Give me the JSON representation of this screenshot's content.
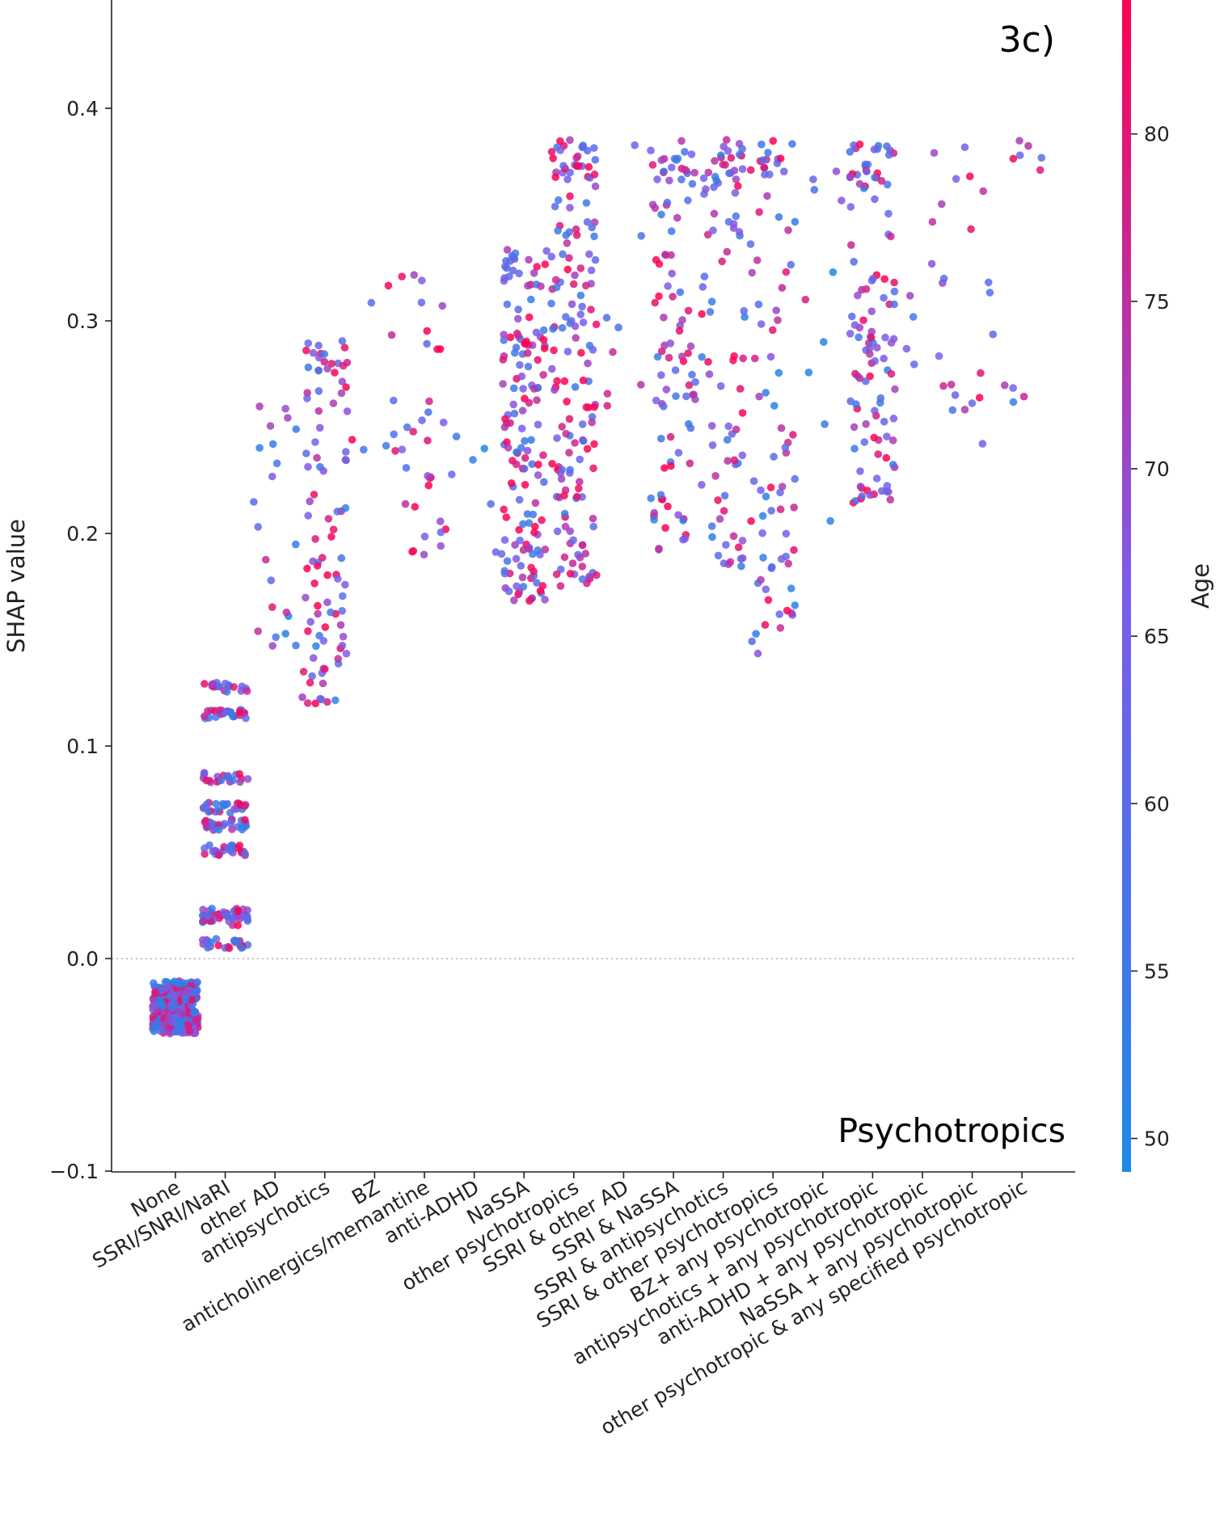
{
  "chart_data": {
    "type": "scatter",
    "panel_label": "3c)",
    "feature_label": "Psychotropics",
    "ylabel": "SHAP value",
    "colorbar_label": "Age",
    "ylim": [
      -0.1,
      0.45
    ],
    "yticks": [
      -0.1,
      0.0,
      0.1,
      0.2,
      0.3,
      0.4
    ],
    "ytick_labels": [
      "−0.1",
      "0.0",
      "0.1",
      "0.2",
      "0.3",
      "0.4"
    ],
    "colorbar_range": [
      49,
      84
    ],
    "colorbar_ticks": [
      50,
      55,
      60,
      65,
      70,
      75,
      80
    ],
    "colormap": [
      "#1e88e5",
      "#7d5ce9",
      "#ff0052"
    ],
    "zero_line": "dotted",
    "categories": [
      "None",
      "SSRI/SNRI/NaRI",
      "other AD",
      "antipsychotics",
      "BZ",
      "anticholinergics/memantine",
      "anti-ADHD",
      "NaSSA",
      "other psychotropics",
      "SSRI & other AD",
      "SSRI & NaSSA",
      "SSRI & antipsychotics",
      "SSRI & other psychotropics",
      "BZ+ any psychotropic",
      "antipsychotics + any psychotropic",
      "anti-ADHD + any psychotropic",
      "NaSSA + any psychotropic",
      "other psychotropic & any specified psychotropic"
    ],
    "groups": [
      {
        "category": "None",
        "n": 320,
        "levels": [
          -0.013,
          -0.017,
          -0.021,
          -0.026,
          -0.03,
          -0.033
        ],
        "min": -0.034,
        "max": -0.012,
        "age_mean": 66
      },
      {
        "category": "SSRI/SNRI/NaRI",
        "n": 230,
        "levels": [
          0.128,
          0.115,
          0.085,
          0.071,
          0.063,
          0.051,
          0.021,
          0.018,
          0.007
        ],
        "min": 0.005,
        "max": 0.13,
        "age_mean": 68
      },
      {
        "category": "other AD",
        "n": 22,
        "min": 0.143,
        "max": 0.26,
        "age_mean": 66
      },
      {
        "category": "antipsychotics",
        "n": 95,
        "min": 0.117,
        "max": 0.296,
        "age_mean": 68
      },
      {
        "category": "BZ",
        "n": 9,
        "min": 0.236,
        "max": 0.322,
        "age_mean": 72
      },
      {
        "category": "anticholinergics/memantine",
        "n": 32,
        "min": 0.188,
        "max": 0.322,
        "age_mean": 74
      },
      {
        "category": "anti-ADHD",
        "n": 6,
        "min": 0.19,
        "max": 0.25,
        "age_mean": 60
      },
      {
        "category": "NaSSA",
        "n": 150,
        "min": 0.168,
        "max": 0.336,
        "age_mean": 70
      },
      {
        "category": "other psychotropics",
        "n": 160,
        "min": 0.174,
        "max": 0.386,
        "age_mean": 71
      },
      {
        "category": "SSRI & other AD",
        "n": 8,
        "min": 0.26,
        "max": 0.386,
        "age_mean": 68
      },
      {
        "category": "SSRI & NaSSA",
        "n": 95,
        "min": 0.189,
        "max": 0.386,
        "age_mean": 70
      },
      {
        "category": "SSRI & antipsychotics",
        "n": 85,
        "min": 0.179,
        "max": 0.386,
        "age_mean": 68
      },
      {
        "category": "SSRI & other psychotropics",
        "n": 80,
        "min": 0.143,
        "max": 0.386,
        "age_mean": 68
      },
      {
        "category": "BZ+ any psychotropic",
        "n": 10,
        "min": 0.198,
        "max": 0.372,
        "age_mean": 62
      },
      {
        "category": "antipsychotics + any psychotropic",
        "n": 115,
        "min": 0.212,
        "max": 0.386,
        "age_mean": 70
      },
      {
        "category": "anti-ADHD + any psychotropic",
        "n": 12,
        "min": 0.268,
        "max": 0.386,
        "age_mean": 66
      },
      {
        "category": "NaSSA + any psychotropic",
        "n": 16,
        "min": 0.233,
        "max": 0.386,
        "age_mean": 72
      },
      {
        "category": "other psychotropic & any specified psychotropic",
        "n": 10,
        "min": 0.255,
        "max": 0.386,
        "age_mean": 70
      }
    ]
  }
}
